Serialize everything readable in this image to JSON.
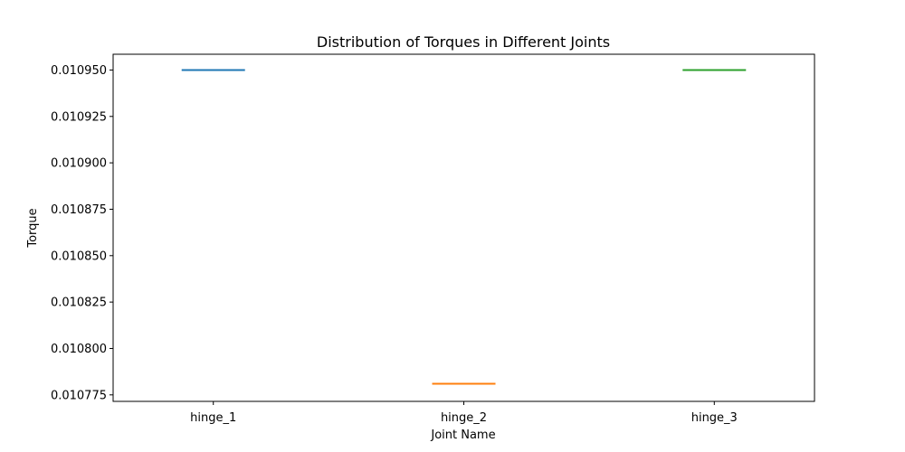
{
  "chart_data": {
    "type": "line",
    "title": "Distribution of Torques in Different Joints",
    "xlabel": "Joint Name",
    "ylabel": "Torque",
    "categories": [
      "hinge_1",
      "hinge_2",
      "hinge_3"
    ],
    "values": [
      0.01095,
      0.010781,
      0.01095
    ],
    "colors": [
      "#1f77b4",
      "#ff7f0e",
      "#2ca02c"
    ],
    "ylim": [
      0.0107715,
      0.0109585
    ],
    "yticks": [
      0.010775,
      0.0108,
      0.010825,
      0.01085,
      0.010875,
      0.0109,
      0.010925,
      0.01095
    ],
    "ytick_labels": [
      "0.010775",
      "0.010800",
      "0.010825",
      "0.010850",
      "0.010875",
      "0.010900",
      "0.010925",
      "0.010950"
    ],
    "grid": false,
    "legend": "none"
  }
}
